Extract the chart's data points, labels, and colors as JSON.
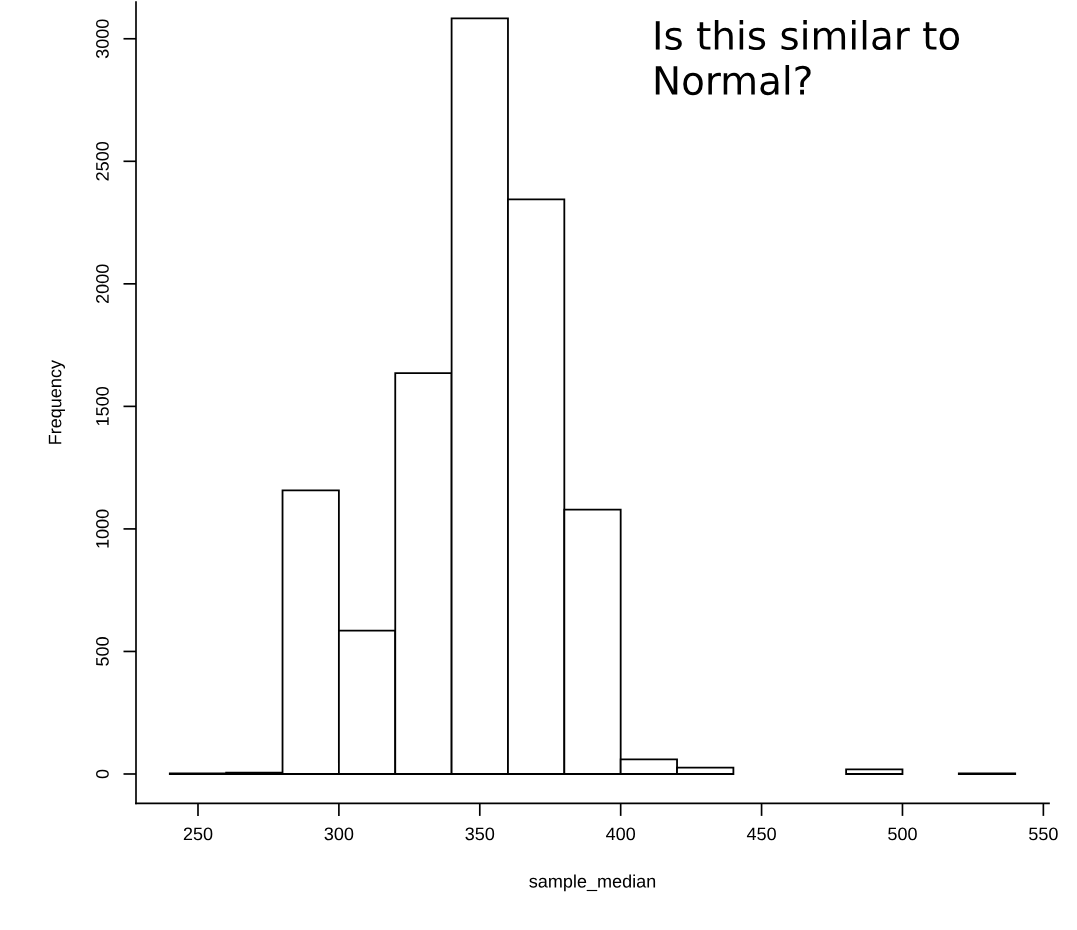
{
  "chart_data": {
    "type": "histogram",
    "xlabel": "sample_median",
    "ylabel": "Frequency",
    "bins": [
      240,
      260,
      280,
      300,
      320,
      340,
      360,
      380,
      400,
      420,
      440,
      460,
      480,
      500,
      520,
      540
    ],
    "values": [
      2,
      5,
      1157,
      585,
      1636,
      3083,
      2345,
      1079,
      60,
      26,
      0,
      0,
      19,
      0,
      2
    ],
    "color": "#ffffff",
    "xlim": [
      228,
      552
    ],
    "xticks": [
      250,
      300,
      350,
      400,
      450,
      500,
      550
    ],
    "ylim": [
      -120,
      3150
    ],
    "yticks": [
      0,
      500,
      1000,
      1500,
      2000,
      2500,
      3000
    ],
    "grid": false,
    "annotations": [
      "Is this similar to\nNormal?"
    ]
  }
}
